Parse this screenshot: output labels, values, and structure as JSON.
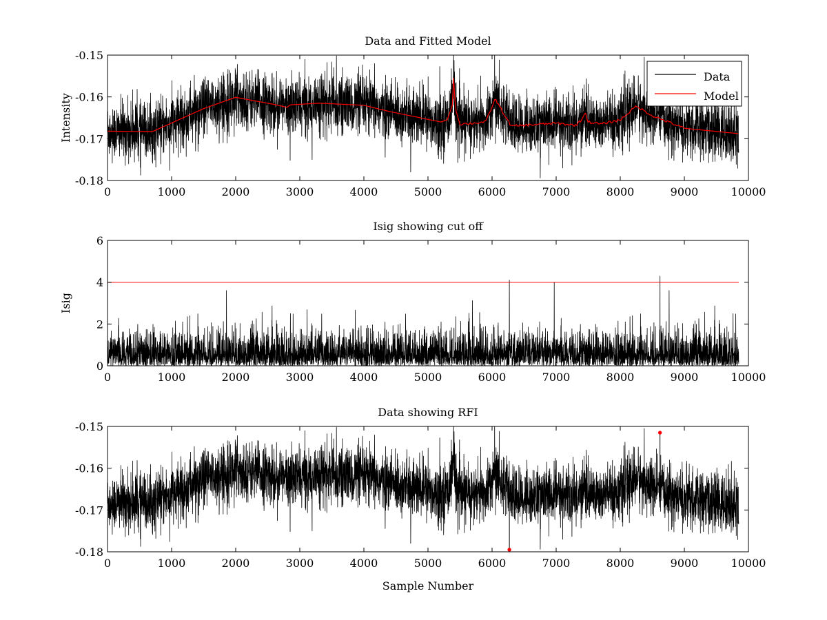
{
  "chart_data": [
    {
      "type": "line",
      "title": "Data and Fitted Model",
      "xlabel": "",
      "ylabel": "Intensity",
      "xlim": [
        0,
        10000
      ],
      "ylim": [
        -0.18,
        -0.15
      ],
      "xticks": [
        0,
        1000,
        2000,
        3000,
        4000,
        5000,
        6000,
        7000,
        8000,
        9000,
        10000
      ],
      "xtick_labels": [
        "0",
        "1000",
        "2000",
        "3000",
        "4000",
        "5000",
        "6000",
        "7000",
        "8000",
        "9000",
        "10000"
      ],
      "yticks": [
        -0.18,
        -0.17,
        -0.16,
        -0.15
      ],
      "ytick_labels": [
        "-0.18",
        "-0.17",
        "-0.16",
        "-0.15"
      ],
      "legend": {
        "position": "top-right",
        "entries": [
          "Data",
          "Model"
        ]
      },
      "series": [
        {
          "name": "Data",
          "color": "#000000",
          "n_samples": 9850,
          "noise_amplitude": 0.0045,
          "baseline_x": [
            0,
            700,
            1500,
            2000,
            2600,
            2850,
            3300,
            4000,
            4400,
            5200,
            5300,
            5380,
            5400,
            5430,
            5500,
            5700,
            5900,
            6050,
            6200,
            6300,
            7000,
            7300,
            7400,
            7450,
            7500,
            7700,
            8000,
            8250,
            8500,
            9000,
            9850
          ],
          "baseline_y": [
            -0.1682,
            -0.1683,
            -0.1628,
            -0.1601,
            -0.1618,
            -0.1625,
            -0.1615,
            -0.162,
            -0.1635,
            -0.166,
            -0.1655,
            -0.162,
            -0.154,
            -0.163,
            -0.1665,
            -0.1663,
            -0.166,
            -0.1605,
            -0.1645,
            -0.167,
            -0.1663,
            -0.1668,
            -0.1655,
            -0.1635,
            -0.166,
            -0.1665,
            -0.1655,
            -0.1622,
            -0.1645,
            -0.1675,
            -0.1688
          ]
        },
        {
          "name": "Model",
          "color": "#ff0000",
          "x": [
            0,
            700,
            1500,
            2000,
            2600,
            2800,
            2850,
            3300,
            4000,
            4400,
            5200,
            5300,
            5380,
            5400,
            5430,
            5500,
            5700,
            5900,
            6050,
            6200,
            6300,
            7000,
            7300,
            7400,
            7450,
            7500,
            7700,
            8000,
            8250,
            8500,
            9000,
            9850
          ],
          "y": [
            -0.1682,
            -0.1683,
            -0.1628,
            -0.1601,
            -0.1618,
            -0.1625,
            -0.1619,
            -0.1615,
            -0.162,
            -0.1635,
            -0.166,
            -0.1655,
            -0.162,
            -0.1555,
            -0.163,
            -0.1665,
            -0.1663,
            -0.166,
            -0.1605,
            -0.1645,
            -0.167,
            -0.1663,
            -0.1668,
            -0.1655,
            -0.1635,
            -0.166,
            -0.1665,
            -0.1655,
            -0.1622,
            -0.1645,
            -0.1675,
            -0.1688
          ]
        }
      ]
    },
    {
      "type": "line",
      "title": "Isig showing cut off",
      "xlabel": "",
      "ylabel": "Isig",
      "xlim": [
        0,
        10000
      ],
      "ylim": [
        0,
        6
      ],
      "xticks": [
        0,
        1000,
        2000,
        3000,
        4000,
        5000,
        6000,
        7000,
        8000,
        9000,
        10000
      ],
      "xtick_labels": [
        "0",
        "1000",
        "2000",
        "3000",
        "4000",
        "5000",
        "6000",
        "7000",
        "8000",
        "9000",
        "10000"
      ],
      "yticks": [
        0,
        2,
        4,
        6
      ],
      "ytick_labels": [
        "0",
        "2",
        "4",
        "6"
      ],
      "series": [
        {
          "name": "Isig",
          "color": "#000000",
          "n_samples": 9850,
          "typical_max": 2.6,
          "spikes": [
            [
              6270,
              4.1
            ],
            [
              6970,
              4.0
            ],
            [
              8620,
              4.3
            ]
          ]
        },
        {
          "name": "Cut off",
          "color": "#ff0000",
          "x": [
            0,
            9850
          ],
          "y": [
            4,
            4
          ]
        }
      ]
    },
    {
      "type": "line",
      "title": "Data showing RFI",
      "xlabel": "Sample Number",
      "ylabel": "",
      "xlim": [
        0,
        10000
      ],
      "ylim": [
        -0.18,
        -0.15
      ],
      "xticks": [
        0,
        1000,
        2000,
        3000,
        4000,
        5000,
        6000,
        7000,
        8000,
        9000,
        10000
      ],
      "xtick_labels": [
        "0",
        "1000",
        "2000",
        "3000",
        "4000",
        "5000",
        "6000",
        "7000",
        "8000",
        "9000",
        "10000"
      ],
      "yticks": [
        -0.18,
        -0.17,
        -0.16,
        -0.15
      ],
      "ytick_labels": [
        "-0.18",
        "-0.17",
        "-0.16",
        "-0.15"
      ],
      "series": [
        {
          "name": "Data",
          "color": "#000000",
          "same_as": "Data and Fitted Model / Data"
        },
        {
          "name": "RFI",
          "color": "#ff0000",
          "x": [
            6270,
            8620
          ],
          "y": [
            -0.1795,
            -0.1515
          ]
        }
      ]
    }
  ]
}
